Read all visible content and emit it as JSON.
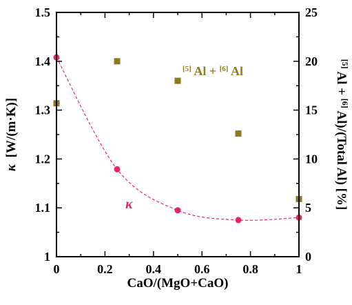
{
  "chart_data": {
    "type": "scatter",
    "xlabel": "CaO/(MgO+CaO)",
    "ylabel_left": {
      "prefix": "κ",
      "rest": "[W/(m·K)]"
    },
    "ylabel_right": {
      "sup1": "[5]",
      "a": "Al + ",
      "sup2": "[6]",
      "b": "Al)/(Total Al) [%]"
    },
    "xlim": [
      0,
      1
    ],
    "ylim_left": [
      1.0,
      1.5
    ],
    "ylim_right": [
      0,
      25
    ],
    "x_ticks": [
      0,
      0.2,
      0.4,
      0.6,
      0.8,
      1
    ],
    "x_tick_labels": [
      "0",
      "0.2",
      "0.4",
      "0.6",
      "0.8",
      "1"
    ],
    "y_left_ticks": [
      1.0,
      1.1,
      1.2,
      1.3,
      1.4,
      1.5
    ],
    "y_left_tick_labels": [
      "1",
      "1.1",
      "1.2",
      "1.3",
      "1.4",
      "1.5"
    ],
    "y_right_ticks": [
      0,
      5,
      10,
      15,
      20,
      25
    ],
    "y_right_tick_labels": [
      "0",
      "5",
      "10",
      "15",
      "20",
      "25"
    ],
    "series": [
      {
        "name": "κ",
        "axis": "left",
        "marker": "circle",
        "color": "#e8246e",
        "x": [
          0,
          0.25,
          0.5,
          0.75,
          1.0
        ],
        "y": [
          1.408,
          1.179,
          1.095,
          1.075,
          1.08
        ],
        "trend": "dashed-curve"
      },
      {
        "name": "[5]Al + [6]Al",
        "axis": "right",
        "marker": "square",
        "color": "#8b7a1e",
        "x": [
          0,
          0.25,
          0.5,
          0.75,
          1.0
        ],
        "y": [
          15.7,
          20.0,
          18.0,
          12.6,
          5.9
        ]
      }
    ],
    "annotations": {
      "kappa_label": "κ",
      "al_label": {
        "sup1": "[5]",
        "a": "Al + ",
        "sup2": "[6]",
        "b": "Al"
      }
    }
  }
}
